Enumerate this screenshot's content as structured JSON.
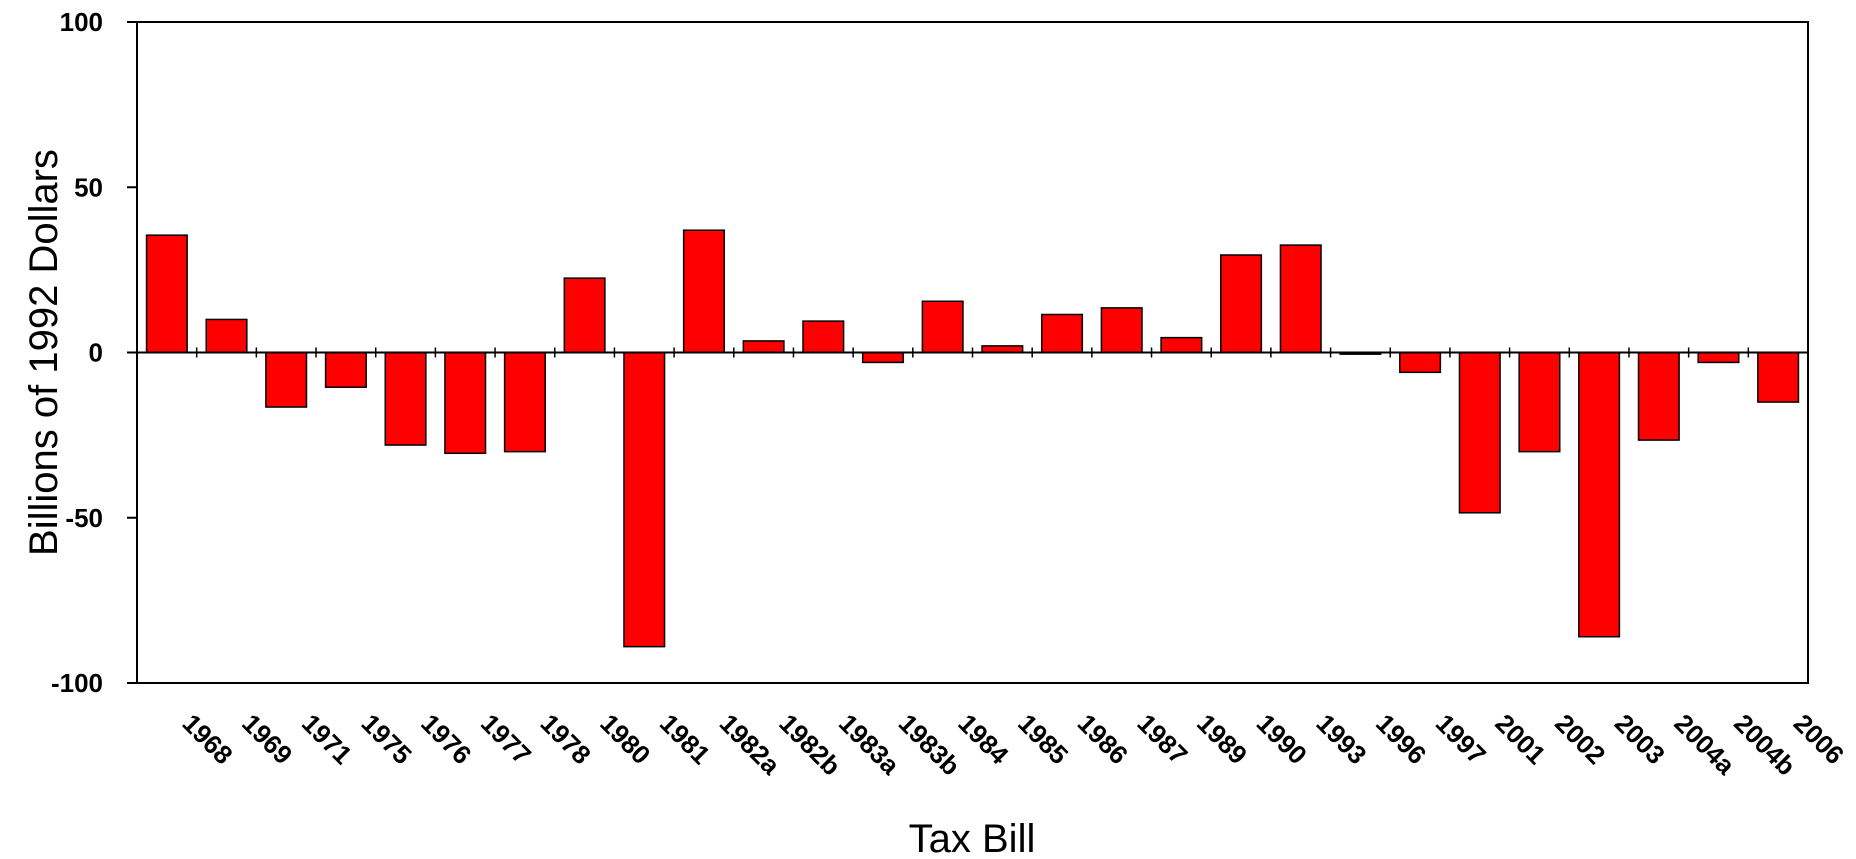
{
  "chart_data": {
    "type": "bar",
    "title": "",
    "xlabel": "Tax Bill",
    "ylabel": "Billions of 1992 Dollars",
    "ylim": [
      -100,
      100
    ],
    "yticks": [
      100,
      50,
      0,
      -50,
      -100
    ],
    "grid": false,
    "legend": "none",
    "categories": [
      "1968",
      "1969",
      "1971",
      "1975",
      "1976",
      "1977",
      "1978",
      "1980",
      "1981",
      "1982a",
      "1982b",
      "1983a",
      "1983b",
      "1984",
      "1985",
      "1986",
      "1987",
      "1989",
      "1990",
      "1993",
      "1996",
      "1997",
      "2001",
      "2002",
      "2003",
      "2004a",
      "2004b",
      "2006"
    ],
    "values": [
      35.5,
      10,
      -16.5,
      -10.5,
      -28,
      -30.5,
      -30,
      22.5,
      -89,
      37,
      3.5,
      9.5,
      -3,
      15.5,
      2,
      11.5,
      13.5,
      4.5,
      29.5,
      32.5,
      -0.5,
      -6,
      -48.5,
      -30,
      -86,
      -26.5,
      -3,
      -15
    ],
    "bar_color": "#FF0000",
    "edge_color": "#000000"
  }
}
